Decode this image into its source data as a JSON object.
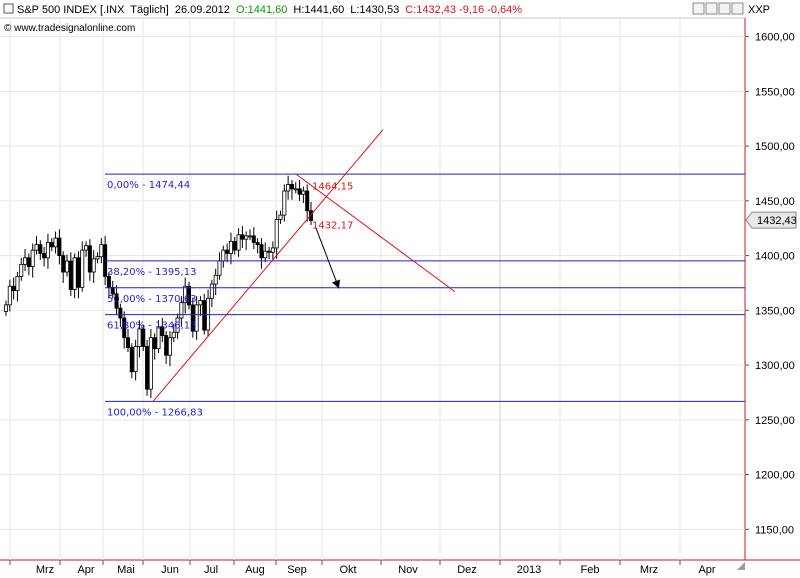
{
  "header": {
    "symbol": "S&P 500 INDEX [.INX",
    "period": "Täglich]",
    "date": "26.09.2012",
    "open": "O:1441,60",
    "high": "H:1441,60",
    "low": "L:1430,53",
    "close_change": "C:1432,43 -9,16 -0,64%",
    "watermark": "© www.tradesignalonline.com",
    "axis_code": "XXP"
  },
  "colors": {
    "fib_lines": "#1f1fd6",
    "trend_lines": "#e01010",
    "arrow": "#000000",
    "candle_up": "#ffffff",
    "candle_down": "#000000",
    "last_price_box": "#e8e8e8",
    "gridlines": "#e6e6e6",
    "axis_border": "#e01010"
  },
  "chart_data": {
    "type": "candlestick",
    "title": "S&P 500 INDEX [.INX Täglich]",
    "xlabels": [
      "Mrz",
      "Apr",
      "Mai",
      "Jun",
      "Jul",
      "Aug",
      "Sep",
      "Okt",
      "Nov",
      "Dez",
      "2013",
      "Feb",
      "Mrz",
      "Apr"
    ],
    "ylabels": [
      "1150,00",
      "1200,00",
      "1250,00",
      "1300,00",
      "1350,00",
      "1400,00",
      "1450,00",
      "1500,00",
      "1550,00",
      "1600,00"
    ],
    "ylim": [
      1122,
      1617
    ],
    "last_price": "1432,43",
    "close_series": [
      1355,
      1372,
      1368,
      1381,
      1392,
      1398,
      1390,
      1405,
      1410,
      1402,
      1398,
      1412,
      1408,
      1416,
      1400,
      1385,
      1395,
      1369,
      1398,
      1371,
      1405,
      1409,
      1385,
      1397,
      1399,
      1410,
      1381,
      1371,
      1365,
      1352,
      1343,
      1325,
      1316,
      1294,
      1317,
      1333,
      1317,
      1278,
      1325,
      1315,
      1335,
      1327,
      1309,
      1325,
      1330,
      1343,
      1357,
      1372,
      1355,
      1331,
      1355,
      1359,
      1332,
      1361,
      1374,
      1382,
      1395,
      1405,
      1402,
      1413,
      1405,
      1419,
      1415,
      1418,
      1418,
      1412,
      1410,
      1398,
      1404,
      1403,
      1407,
      1433,
      1437,
      1459,
      1465,
      1461,
      1461,
      1456,
      1459,
      1441,
      1432
    ],
    "fibonacci": [
      {
        "label": "0,00% - 1474,44",
        "value": 1474.44
      },
      {
        "label": "38,20% - 1395,13",
        "value": 1395.13
      },
      {
        "label": "50,00% - 1370,63",
        "value": 1370.63
      },
      {
        "label": "61,80% - 1346,13",
        "value": 1346.13
      },
      {
        "label": "100,00% - 1266,83",
        "value": 1266.83
      }
    ],
    "annotations": [
      {
        "label": "1464,15",
        "value": 1464.15
      },
      {
        "label": "1432,17",
        "value": 1432.17
      }
    ],
    "grid": true,
    "legend": "none"
  }
}
